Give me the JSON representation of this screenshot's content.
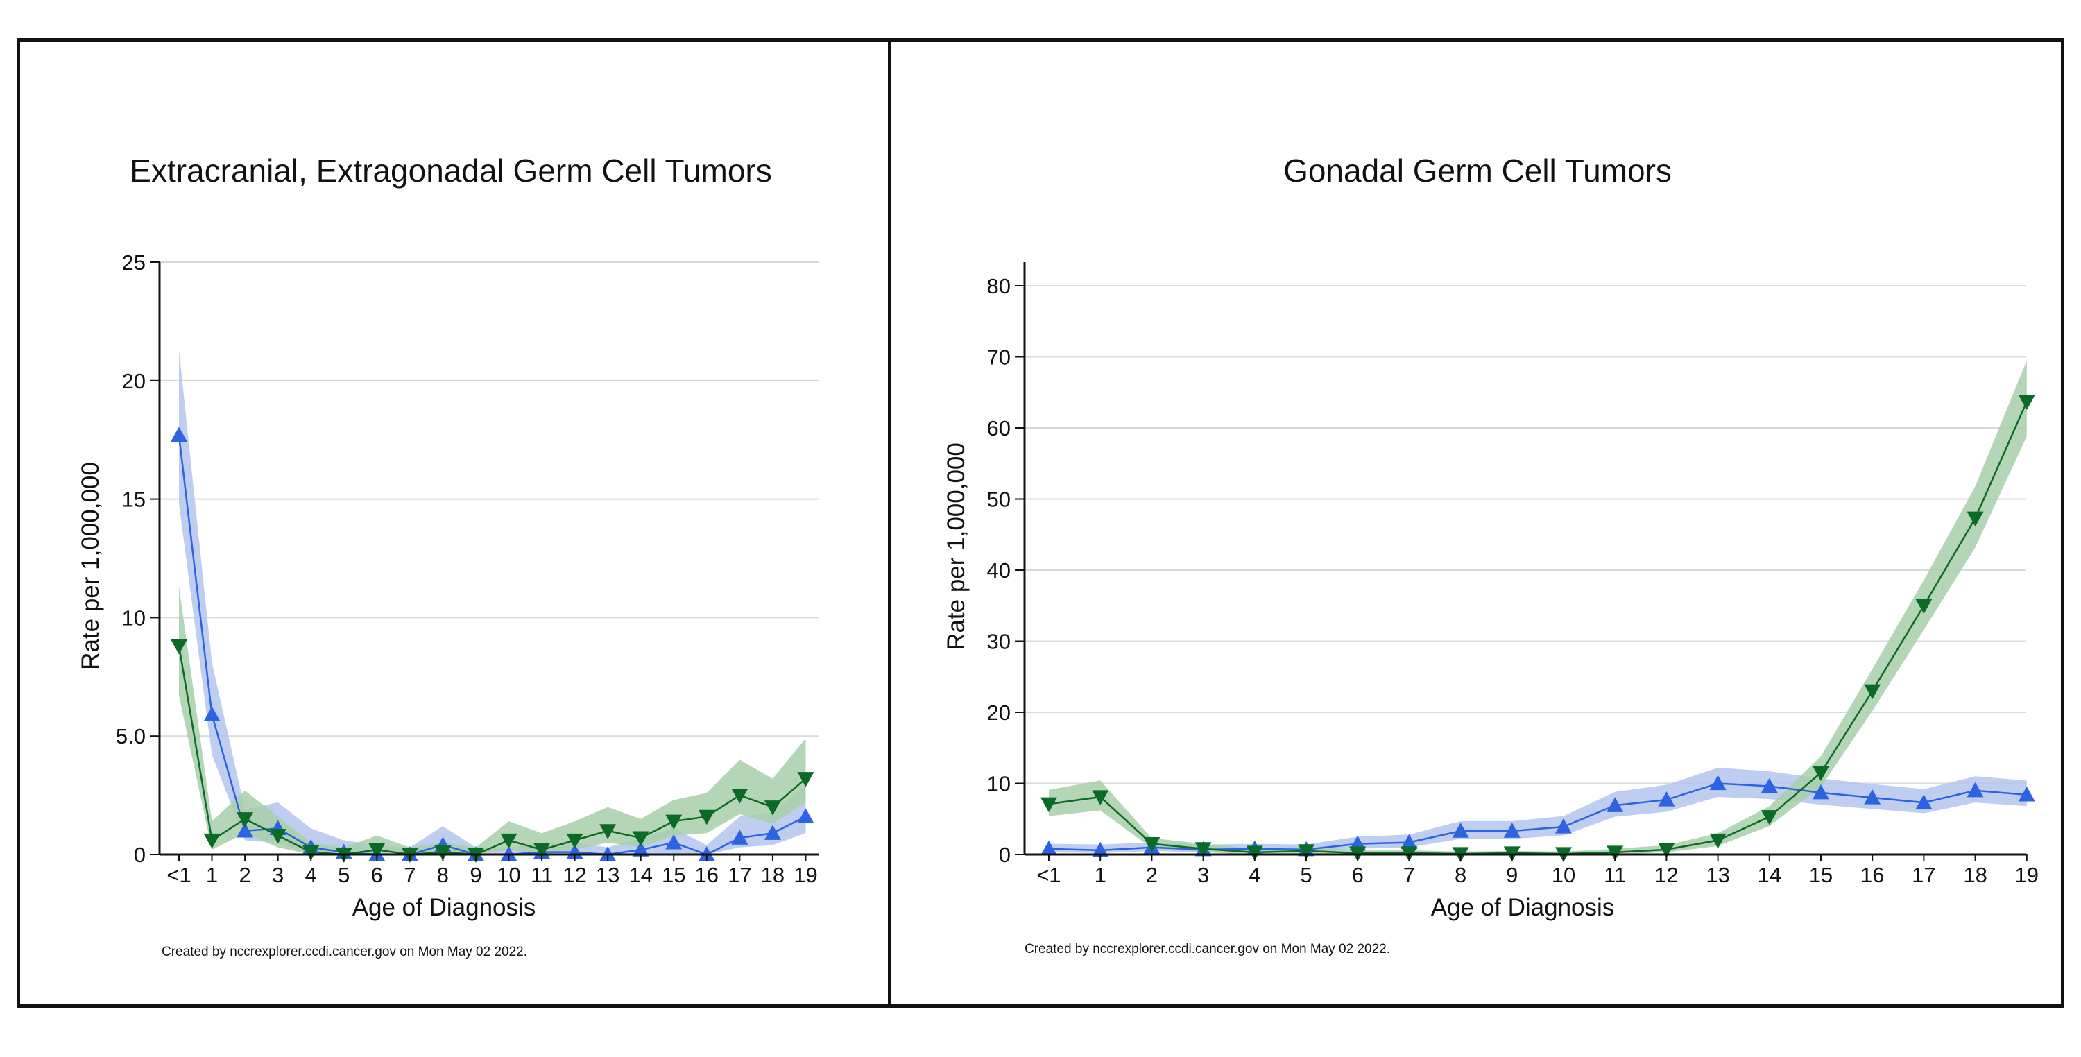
{
  "charts": [
    {
      "title": "Extracranial, Extragonadal Germ Cell Tumors",
      "credit": "Created by nccrexplorer.ccdi.cancer.gov on Mon May 02 2022."
    },
    {
      "title": "Gonadal Germ Cell Tumors",
      "credit": "Created by nccrexplorer.ccdi.cancer.gov on Mon May 02 2022."
    }
  ],
  "colors": {
    "blue": "#2b63e0",
    "blue_band": "#b4c4ef",
    "green": "#0b6a26",
    "green_band": "#a8cfa9"
  },
  "chart_data": [
    {
      "type": "line",
      "title": "Extracranial, Extragonadal Germ Cell Tumors",
      "xlabel": "Age of Diagnosis",
      "ylabel": "Rate per 1,000,000",
      "categories": [
        "<1",
        "1",
        "2",
        "3",
        "4",
        "5",
        "6",
        "7",
        "8",
        "9",
        "10",
        "11",
        "12",
        "13",
        "14",
        "15",
        "16",
        "17",
        "18",
        "19"
      ],
      "yticks": [
        0,
        5.0,
        10,
        15,
        20,
        25
      ],
      "ytick_labels": [
        "0",
        "5.0",
        "10",
        "15",
        "20",
        "25"
      ],
      "ylim": [
        0,
        25
      ],
      "grid": true,
      "series": [
        {
          "marker": "triangle-up",
          "color": "#2b63e0",
          "values": [
            17.7,
            5.9,
            1.0,
            1.1,
            0.3,
            0.1,
            0.0,
            0.0,
            0.4,
            0.0,
            0.0,
            0.1,
            0.1,
            0.0,
            0.2,
            0.5,
            0.0,
            0.7,
            0.9,
            1.6
          ],
          "lower": [
            14.8,
            4.2,
            0.6,
            0.5,
            0.0,
            0.0,
            0.0,
            0.0,
            0.0,
            0.0,
            0.0,
            0.0,
            0.0,
            0.0,
            0.0,
            0.0,
            0.0,
            0.3,
            0.4,
            0.9
          ],
          "upper": [
            21.3,
            8.1,
            1.9,
            2.2,
            1.1,
            0.6,
            0.4,
            0.3,
            1.2,
            0.3,
            0.3,
            0.5,
            0.5,
            0.3,
            0.7,
            1.1,
            0.4,
            1.6,
            1.8,
            2.9
          ]
        },
        {
          "marker": "triangle-down",
          "color": "#0b6a26",
          "values": [
            8.8,
            0.6,
            1.5,
            0.8,
            0.1,
            0.0,
            0.2,
            0.0,
            0.1,
            0.0,
            0.6,
            0.2,
            0.6,
            1.0,
            0.7,
            1.4,
            1.6,
            2.5,
            2.0,
            3.2
          ],
          "lower": [
            6.7,
            0.2,
            0.9,
            0.3,
            0.0,
            0.0,
            0.0,
            0.0,
            0.0,
            0.0,
            0.2,
            0.0,
            0.2,
            0.5,
            0.3,
            0.8,
            0.9,
            1.7,
            1.3,
            2.2
          ],
          "upper": [
            11.3,
            1.4,
            2.7,
            1.6,
            0.5,
            0.3,
            0.8,
            0.3,
            0.5,
            0.3,
            1.4,
            0.9,
            1.4,
            2.0,
            1.5,
            2.3,
            2.6,
            4.0,
            3.2,
            4.9
          ]
        }
      ]
    },
    {
      "type": "line",
      "title": "Gonadal Germ Cell Tumors",
      "xlabel": "Age of Diagnosis",
      "ylabel": "Rate per 1,000,000",
      "categories": [
        "<1",
        "1",
        "2",
        "3",
        "4",
        "5",
        "6",
        "7",
        "8",
        "9",
        "10",
        "11",
        "12",
        "13",
        "14",
        "15",
        "16",
        "17",
        "18",
        "19"
      ],
      "yticks": [
        0,
        10,
        20,
        30,
        40,
        50,
        60,
        70,
        80
      ],
      "ytick_labels": [
        "0",
        "10",
        "20",
        "30",
        "40",
        "50",
        "60",
        "70",
        "80"
      ],
      "ylim": [
        0,
        80
      ],
      "grid": true,
      "series": [
        {
          "marker": "triangle-up",
          "color": "#2b63e0",
          "values": [
            0.8,
            0.6,
            1.0,
            0.7,
            0.8,
            0.7,
            1.5,
            1.7,
            3.3,
            3.3,
            3.9,
            6.9,
            7.7,
            10.0,
            9.6,
            8.7,
            8.0,
            7.3,
            9.0,
            8.4
          ],
          "lower": [
            0.3,
            0.2,
            0.5,
            0.3,
            0.4,
            0.3,
            0.8,
            1.0,
            2.2,
            2.2,
            2.7,
            5.3,
            6.0,
            8.1,
            7.8,
            7.0,
            6.4,
            5.8,
            7.3,
            6.8
          ],
          "upper": [
            1.5,
            1.4,
            1.7,
            1.4,
            1.5,
            1.4,
            2.5,
            2.8,
            4.7,
            4.7,
            5.4,
            8.8,
            9.8,
            12.2,
            11.7,
            10.7,
            9.9,
            9.2,
            11.0,
            10.4
          ]
        },
        {
          "marker": "triangle-down",
          "color": "#0b6a26",
          "values": [
            7.1,
            8.1,
            1.5,
            0.8,
            0.3,
            0.5,
            0.2,
            0.2,
            0.1,
            0.2,
            0.1,
            0.3,
            0.7,
            2.0,
            5.3,
            11.5,
            23.0,
            35.0,
            47.3,
            63.7
          ],
          "lower": [
            5.4,
            6.2,
            0.9,
            0.3,
            0.0,
            0.1,
            0.0,
            0.0,
            0.0,
            0.0,
            0.0,
            0.0,
            0.3,
            1.2,
            4.0,
            9.5,
            20.2,
            31.6,
            43.2,
            58.8
          ],
          "upper": [
            9.1,
            10.4,
            2.3,
            1.5,
            0.8,
            1.1,
            0.6,
            0.6,
            0.4,
            0.5,
            0.4,
            0.8,
            1.3,
            3.0,
            6.8,
            13.8,
            26.1,
            38.6,
            51.8,
            69.5
          ]
        }
      ]
    }
  ]
}
